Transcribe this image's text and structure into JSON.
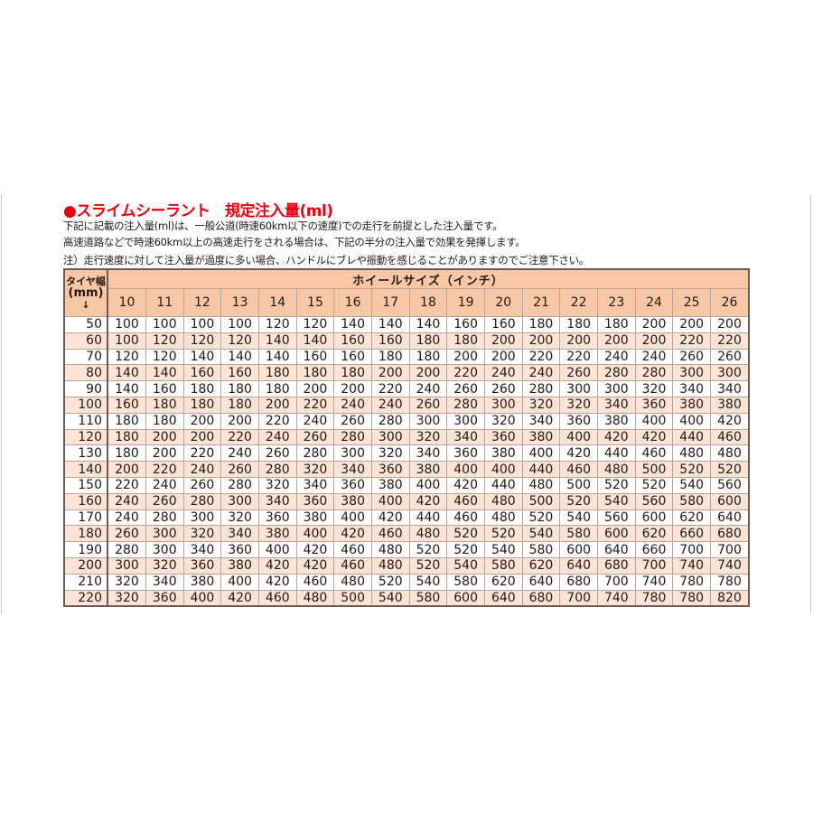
{
  "title": "●スライムシーラント　規定注入量(ml)",
  "notes": [
    "下記に記載の注入量(ml)は、一般公道(時速60km以下の速度)での走行を前提とした注入量です。",
    "高速道路などで時速60km以上の高速走行をされる場合は、下記の半分の注入量で効果を発揮します。",
    "注）走行速度に対して注入量が過度に多い場合、ハンドルにブレや振動を感じることがありますのでご注意下さい。"
  ],
  "colors": {
    "title": "#e60012",
    "header_bg": "#f7c7a6",
    "alt_row_bg": "#fbe4d6"
  },
  "table": {
    "row_header_label": "タイヤ幅",
    "row_header_unit": "(mm)",
    "row_header_arrow": "↓",
    "column_group_label": "ホイールサイズ（インチ）",
    "columns": [
      "10",
      "11",
      "12",
      "13",
      "14",
      "15",
      "16",
      "17",
      "18",
      "19",
      "20",
      "21",
      "22",
      "23",
      "24",
      "25",
      "26"
    ],
    "rows": [
      {
        "width": "50",
        "values": [
          "100",
          "100",
          "100",
          "100",
          "120",
          "120",
          "140",
          "140",
          "140",
          "160",
          "160",
          "180",
          "180",
          "180",
          "200",
          "200",
          "200"
        ]
      },
      {
        "width": "60",
        "values": [
          "100",
          "120",
          "120",
          "120",
          "140",
          "140",
          "160",
          "160",
          "180",
          "180",
          "200",
          "200",
          "200",
          "200",
          "200",
          "220",
          "220"
        ]
      },
      {
        "width": "70",
        "values": [
          "120",
          "120",
          "140",
          "140",
          "140",
          "160",
          "160",
          "180",
          "180",
          "200",
          "200",
          "220",
          "220",
          "240",
          "240",
          "260",
          "260"
        ]
      },
      {
        "width": "80",
        "values": [
          "140",
          "140",
          "160",
          "160",
          "180",
          "180",
          "180",
          "200",
          "200",
          "220",
          "240",
          "240",
          "260",
          "280",
          "280",
          "300",
          "300"
        ]
      },
      {
        "width": "90",
        "values": [
          "140",
          "160",
          "180",
          "180",
          "180",
          "200",
          "200",
          "220",
          "240",
          "260",
          "260",
          "280",
          "300",
          "300",
          "320",
          "340",
          "340"
        ]
      },
      {
        "width": "100",
        "values": [
          "160",
          "180",
          "180",
          "180",
          "200",
          "220",
          "240",
          "240",
          "260",
          "280",
          "300",
          "320",
          "320",
          "340",
          "360",
          "380",
          "380"
        ]
      },
      {
        "width": "110",
        "values": [
          "180",
          "180",
          "200",
          "200",
          "220",
          "240",
          "260",
          "280",
          "300",
          "300",
          "320",
          "340",
          "360",
          "380",
          "400",
          "400",
          "420"
        ]
      },
      {
        "width": "120",
        "values": [
          "180",
          "200",
          "200",
          "220",
          "240",
          "260",
          "280",
          "300",
          "320",
          "340",
          "360",
          "380",
          "400",
          "420",
          "420",
          "440",
          "460"
        ]
      },
      {
        "width": "130",
        "values": [
          "180",
          "200",
          "220",
          "240",
          "260",
          "280",
          "300",
          "320",
          "340",
          "360",
          "380",
          "400",
          "420",
          "440",
          "460",
          "480",
          "480"
        ]
      },
      {
        "width": "140",
        "values": [
          "200",
          "220",
          "240",
          "260",
          "280",
          "320",
          "340",
          "360",
          "380",
          "400",
          "400",
          "440",
          "460",
          "480",
          "500",
          "520",
          "520"
        ]
      },
      {
        "width": "150",
        "values": [
          "220",
          "240",
          "260",
          "280",
          "320",
          "340",
          "360",
          "380",
          "400",
          "420",
          "440",
          "480",
          "500",
          "520",
          "520",
          "540",
          "560"
        ]
      },
      {
        "width": "160",
        "values": [
          "240",
          "260",
          "280",
          "300",
          "340",
          "360",
          "380",
          "400",
          "420",
          "460",
          "480",
          "500",
          "520",
          "540",
          "560",
          "580",
          "600"
        ]
      },
      {
        "width": "170",
        "values": [
          "240",
          "280",
          "300",
          "320",
          "360",
          "380",
          "400",
          "420",
          "440",
          "460",
          "480",
          "520",
          "540",
          "560",
          "600",
          "620",
          "640"
        ]
      },
      {
        "width": "180",
        "values": [
          "260",
          "300",
          "320",
          "340",
          "380",
          "400",
          "420",
          "460",
          "480",
          "520",
          "520",
          "540",
          "580",
          "600",
          "620",
          "660",
          "680"
        ]
      },
      {
        "width": "190",
        "values": [
          "280",
          "300",
          "340",
          "360",
          "400",
          "420",
          "460",
          "480",
          "520",
          "520",
          "540",
          "580",
          "600",
          "640",
          "660",
          "700",
          "700"
        ]
      },
      {
        "width": "200",
        "values": [
          "300",
          "320",
          "360",
          "380",
          "420",
          "420",
          "460",
          "480",
          "520",
          "540",
          "580",
          "620",
          "640",
          "680",
          "700",
          "740",
          "740"
        ]
      },
      {
        "width": "210",
        "values": [
          "320",
          "340",
          "380",
          "400",
          "420",
          "460",
          "480",
          "520",
          "540",
          "580",
          "620",
          "640",
          "680",
          "700",
          "740",
          "780",
          "780"
        ]
      },
      {
        "width": "220",
        "values": [
          "320",
          "360",
          "400",
          "420",
          "460",
          "480",
          "500",
          "540",
          "580",
          "600",
          "640",
          "680",
          "700",
          "740",
          "780",
          "780",
          "820"
        ]
      }
    ]
  }
}
